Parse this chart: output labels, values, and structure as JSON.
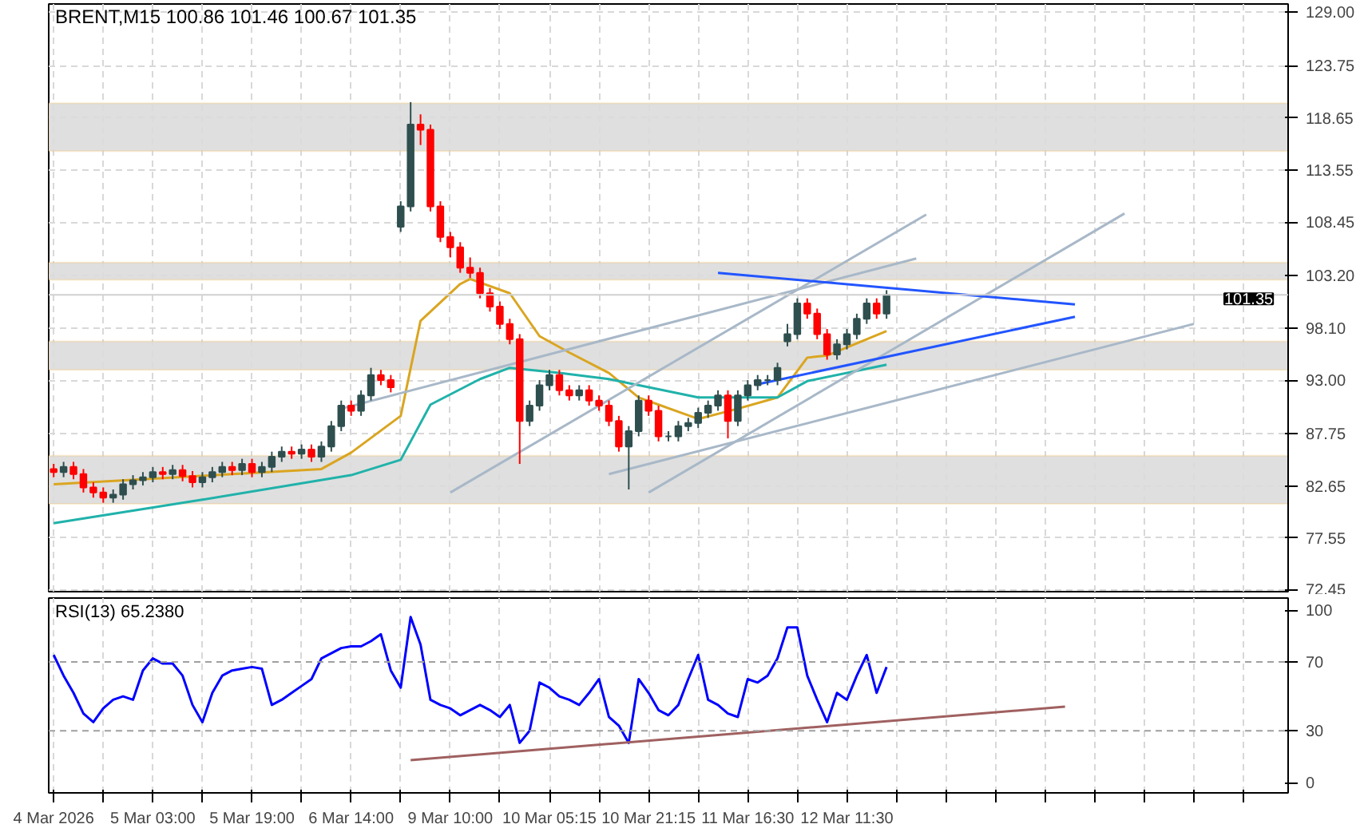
{
  "chart_data": [
    {
      "type": "candlestick",
      "title": "BRENT,M15  100.86 101.46 100.67 101.35",
      "tick_labels": "y",
      "grid": true,
      "ylim": [
        72.3,
        129.8
      ],
      "categories": [
        null,
        null,
        null,
        null,
        null,
        null,
        null,
        null,
        null,
        null,
        null,
        null,
        null,
        null,
        null,
        null,
        null,
        null,
        null,
        null,
        null,
        null,
        null,
        null,
        null,
        null,
        null,
        null,
        null,
        null,
        null,
        null,
        null,
        null,
        null,
        null,
        null,
        null,
        null,
        null,
        null,
        null,
        null,
        null,
        null,
        null,
        null,
        null,
        null,
        null,
        null,
        null,
        null,
        null,
        null,
        null,
        null,
        null,
        null,
        null,
        null,
        null,
        null,
        null,
        null,
        null,
        null,
        null,
        null,
        null,
        null,
        null,
        null,
        null,
        null,
        null,
        null,
        null,
        null,
        null,
        null,
        null,
        null,
        null,
        null,
        null,
        null,
        null,
        null,
        null,
        null,
        null,
        null,
        null,
        null,
        null,
        null,
        null,
        null,
        null,
        null,
        null,
        null,
        null,
        null,
        null,
        null,
        null,
        null,
        null,
        null,
        null,
        null,
        null,
        null,
        null,
        null,
        null,
        null,
        null,
        null,
        null,
        null,
        null,
        null
      ],
      "yticks": [
        {
          "value": 72.45,
          "label": "72.45"
        },
        {
          "value": 77.55,
          "label": "77.55"
        },
        {
          "value": 82.65,
          "label": "82.65"
        },
        {
          "value": 87.75,
          "label": "87.75"
        },
        {
          "value": 93.0,
          "label": "93.00"
        },
        {
          "value": 98.1,
          "label": "98.10"
        },
        {
          "value": 103.2,
          "label": "103.20"
        },
        {
          "value": 108.45,
          "label": "108.45"
        },
        {
          "value": 113.55,
          "label": "113.55"
        },
        {
          "value": 118.65,
          "label": "118.65"
        },
        {
          "value": 123.75,
          "label": "123.75"
        },
        {
          "value": 129.0,
          "label": "129.00"
        }
      ],
      "ohlc": [
        [
          84.3,
          84.8,
          83.5,
          84.0
        ],
        [
          84.0,
          85.0,
          83.5,
          84.5
        ],
        [
          84.5,
          85.0,
          83.3,
          83.8
        ],
        [
          83.8,
          84.3,
          82.0,
          82.5
        ],
        [
          82.5,
          83.0,
          81.5,
          82.0
        ],
        [
          82.0,
          82.5,
          81.0,
          81.5
        ],
        [
          81.5,
          82.3,
          81.0,
          81.8
        ],
        [
          81.8,
          83.3,
          81.3,
          82.8
        ],
        [
          82.8,
          83.7,
          82.3,
          83.2
        ],
        [
          83.2,
          84.0,
          82.7,
          83.5
        ],
        [
          83.5,
          84.5,
          83.0,
          84.0
        ],
        [
          84.0,
          84.5,
          83.3,
          83.8
        ],
        [
          83.8,
          84.7,
          83.3,
          84.2
        ],
        [
          84.2,
          84.7,
          83.1,
          83.6
        ],
        [
          83.6,
          84.1,
          82.5,
          83.0
        ],
        [
          83.0,
          84.0,
          82.5,
          83.5
        ],
        [
          83.5,
          84.5,
          83.0,
          84.0
        ],
        [
          84.0,
          85.0,
          83.5,
          84.5
        ],
        [
          84.5,
          85.0,
          83.7,
          84.2
        ],
        [
          84.2,
          85.3,
          83.7,
          84.8
        ],
        [
          84.8,
          85.3,
          83.5,
          84.0
        ],
        [
          84.0,
          85.0,
          83.5,
          84.5
        ],
        [
          84.5,
          86.0,
          84.0,
          85.5
        ],
        [
          85.5,
          86.5,
          85.0,
          86.0
        ],
        [
          86.0,
          86.5,
          85.3,
          85.8
        ],
        [
          85.8,
          86.7,
          85.3,
          86.2
        ],
        [
          86.2,
          86.7,
          85.0,
          85.5
        ],
        [
          85.5,
          87.0,
          85.0,
          86.5
        ],
        [
          86.5,
          89.0,
          86.0,
          88.5
        ],
        [
          88.5,
          91.0,
          88.0,
          90.5
        ],
        [
          90.5,
          91.0,
          89.5,
          90.0
        ],
        [
          90.0,
          92.0,
          89.5,
          91.5
        ],
        [
          91.5,
          94.2,
          91.0,
          93.5
        ],
        [
          93.5,
          94.0,
          92.5,
          93.0
        ],
        [
          93.0,
          93.5,
          91.8,
          92.3
        ],
        [
          108.0,
          110.5,
          107.5,
          110.0
        ],
        [
          110.0,
          120.2,
          109.5,
          118.0
        ],
        [
          118.0,
          119.0,
          116.0,
          117.5
        ],
        [
          117.5,
          118.0,
          109.5,
          110.0
        ],
        [
          110.0,
          110.5,
          106.5,
          107.0
        ],
        [
          107.0,
          107.5,
          105.0,
          106.0
        ],
        [
          106.0,
          106.5,
          103.5,
          104.0
        ],
        [
          104.0,
          105.0,
          103.0,
          103.5
        ],
        [
          103.5,
          104.0,
          101.0,
          101.5
        ],
        [
          101.5,
          102.0,
          99.7,
          100.2
        ],
        [
          100.2,
          100.7,
          98.0,
          98.5
        ],
        [
          98.5,
          99.0,
          96.5,
          97.0
        ],
        [
          97.0,
          97.5,
          84.8,
          89.0
        ],
        [
          89.0,
          91.0,
          88.5,
          90.5
        ],
        [
          90.5,
          93.0,
          90.0,
          92.5
        ],
        [
          92.5,
          94.0,
          92.0,
          93.5
        ],
        [
          93.5,
          94.0,
          91.5,
          92.0
        ],
        [
          92.0,
          92.5,
          91.0,
          91.5
        ],
        [
          91.5,
          92.5,
          91.0,
          92.0
        ],
        [
          92.0,
          92.5,
          90.5,
          91.0
        ],
        [
          91.0,
          91.5,
          90.0,
          90.5
        ],
        [
          90.5,
          91.0,
          88.5,
          89.0
        ],
        [
          89.0,
          89.5,
          86.0,
          86.5
        ],
        [
          86.5,
          88.5,
          82.3,
          88.0
        ],
        [
          88.0,
          91.5,
          87.5,
          91.0
        ],
        [
          91.0,
          91.5,
          89.5,
          90.0
        ],
        [
          90.0,
          90.5,
          87.0,
          87.5
        ],
        [
          87.5,
          88.0,
          87.0,
          87.5
        ],
        [
          87.5,
          89.0,
          87.0,
          88.5
        ],
        [
          88.5,
          89.3,
          88.0,
          88.8
        ],
        [
          88.8,
          90.3,
          88.3,
          89.8
        ],
        [
          89.8,
          91.0,
          89.3,
          90.5
        ],
        [
          90.5,
          92.0,
          90.0,
          91.5
        ],
        [
          91.5,
          92.0,
          87.3,
          89.0
        ],
        [
          89.0,
          92.0,
          88.5,
          91.5
        ],
        [
          91.5,
          93.0,
          91.0,
          92.5
        ],
        [
          92.5,
          93.5,
          92.0,
          93.0
        ],
        [
          93.0,
          93.5,
          92.5,
          93.0
        ],
        [
          93.0,
          94.7,
          92.5,
          94.2
        ],
        [
          96.8,
          98.5,
          96.3,
          97.5
        ],
        [
          97.5,
          101.0,
          97.0,
          100.5
        ],
        [
          100.5,
          101.0,
          99.0,
          99.5
        ],
        [
          99.5,
          100.0,
          97.0,
          97.5
        ],
        [
          97.5,
          98.0,
          95.0,
          95.5
        ],
        [
          95.5,
          97.0,
          95.0,
          96.5
        ],
        [
          96.5,
          98.0,
          96.0,
          97.5
        ],
        [
          97.5,
          99.5,
          97.0,
          99.0
        ],
        [
          99.0,
          101.0,
          98.5,
          100.5
        ],
        [
          100.5,
          101.0,
          99.0,
          99.5
        ],
        [
          99.5,
          101.8,
          99.0,
          101.35
        ],
        null,
        null,
        null,
        null,
        null,
        null,
        null,
        null,
        null,
        null,
        null,
        null,
        null,
        null,
        null,
        null,
        null,
        null,
        null,
        null,
        null,
        null,
        null,
        null,
        null,
        null,
        null,
        null,
        null,
        null,
        null,
        null,
        null,
        null,
        null,
        null,
        null,
        null,
        null,
        null
      ],
      "colors": [
        "#ff0000",
        "#2f4f4f",
        "#ff0000",
        "#ff0000",
        "#ff0000",
        "#ff0000",
        "#2f4f4f",
        "#2f4f4f",
        "#2f4f4f",
        "#2f4f4f",
        "#2f4f4f",
        "#ff0000",
        "#2f4f4f",
        "#ff0000",
        "#ff0000",
        "#2f4f4f",
        "#2f4f4f",
        "#2f4f4f",
        "#ff0000",
        "#2f4f4f",
        "#ff0000",
        "#2f4f4f",
        "#2f4f4f",
        "#2f4f4f",
        "#ff0000",
        "#2f4f4f",
        "#ff0000",
        "#2f4f4f",
        "#2f4f4f",
        "#2f4f4f",
        "#ff0000",
        "#2f4f4f",
        "#2f4f4f",
        "#ff0000",
        "#ff0000",
        "#2f4f4f",
        "#2f4f4f",
        "#ff0000",
        "#ff0000",
        "#ff0000",
        "#ff0000",
        "#ff0000",
        "#ff0000",
        "#ff0000",
        "#ff0000",
        "#ff0000",
        "#ff0000",
        "#ff0000",
        "#2f4f4f",
        "#2f4f4f",
        "#2f4f4f",
        "#ff0000",
        "#ff0000",
        "#2f4f4f",
        "#ff0000",
        "#ff0000",
        "#ff0000",
        "#ff0000",
        "#2f4f4f",
        "#2f4f4f",
        "#ff0000",
        "#ff0000",
        "#2f4f4f",
        "#2f4f4f",
        "#2f4f4f",
        "#2f4f4f",
        "#2f4f4f",
        "#2f4f4f",
        "#ff0000",
        "#2f4f4f",
        "#2f4f4f",
        "#2f4f4f",
        "#2f4f4f",
        "#2f4f4f",
        "#2f4f4f",
        "#2f4f4f",
        "#ff0000",
        "#ff0000",
        "#ff0000",
        "#2f4f4f",
        "#2f4f4f",
        "#2f4f4f",
        "#2f4f4f",
        "#ff0000",
        "#2f4f4f",
        null,
        null,
        null,
        null,
        null,
        null,
        null,
        null,
        null,
        null,
        null,
        null,
        null,
        null,
        null,
        null,
        null,
        null,
        null,
        null,
        null,
        null,
        null,
        null,
        null,
        null,
        null,
        null,
        null,
        null,
        null,
        null,
        null,
        null,
        null,
        null,
        null,
        null,
        null,
        null
      ],
      "series": [
        {
          "type": "line",
          "color": "#daa520",
          "values": [
            82.8,
            null,
            null,
            null,
            null,
            null,
            null,
            null,
            null,
            83.3,
            null,
            null,
            null,
            null,
            null,
            null,
            null,
            null,
            83.8,
            null,
            null,
            null,
            null,
            null,
            null,
            null,
            null,
            84.3,
            null,
            null,
            85.9,
            null,
            null,
            null,
            null,
            89.5,
            null,
            98.8,
            null,
            null,
            null,
            102.4,
            102.9,
            null,
            null,
            null,
            101.5,
            null,
            null,
            97.3,
            null,
            null,
            95.7,
            null,
            null,
            null,
            93.7,
            null,
            null,
            91.3,
            null,
            90.6,
            null,
            null,
            null,
            89.2,
            null,
            null,
            null,
            90.2,
            null,
            null,
            null,
            91.3,
            null,
            null,
            95.2,
            null,
            95.4,
            null,
            null,
            null,
            null,
            null,
            97.8,
            null,
            null,
            null,
            null,
            null,
            null,
            null,
            null,
            null,
            null,
            null,
            null,
            null,
            null,
            null,
            null,
            null,
            null,
            null,
            null,
            null,
            null,
            null,
            null,
            null,
            null,
            null,
            null,
            null,
            null,
            null,
            null,
            null,
            null,
            null,
            null,
            null,
            null,
            null,
            null
          ]
        },
        {
          "type": "line",
          "color": "#20b2aa",
          "values": [
            79.0,
            null,
            null,
            null,
            null,
            null,
            null,
            null,
            null,
            null,
            null,
            null,
            null,
            null,
            null,
            81.3,
            null,
            null,
            null,
            null,
            null,
            null,
            null,
            null,
            null,
            null,
            null,
            null,
            null,
            null,
            83.7,
            null,
            null,
            null,
            null,
            85.2,
            null,
            null,
            90.6,
            null,
            null,
            null,
            null,
            93.1,
            null,
            null,
            94.2,
            null,
            null,
            null,
            null,
            93.7,
            null,
            null,
            null,
            null,
            93.1,
            null,
            null,
            null,
            null,
            92.1,
            null,
            null,
            null,
            91.3,
            null,
            null,
            null,
            null,
            null,
            null,
            null,
            91.3,
            null,
            null,
            92.9,
            null,
            null,
            null,
            null,
            null,
            null,
            null,
            94.5,
            null,
            null,
            null,
            null,
            null,
            null,
            null,
            null,
            null,
            null,
            null,
            null,
            null,
            null,
            null,
            null,
            null,
            null,
            null,
            null,
            null,
            null,
            null,
            null,
            null,
            null,
            null,
            null,
            null,
            null,
            null,
            null,
            null,
            null,
            null,
            null,
            null,
            null,
            null,
            null
          ]
        },
        {
          "type": "line",
          "color": "#a8b8c8",
          "values": [
            null,
            null,
            null,
            null,
            null,
            null,
            null,
            null,
            null,
            null,
            null,
            null,
            null,
            null,
            null,
            null,
            null,
            null,
            null,
            null,
            null,
            null,
            null,
            null,
            null,
            null,
            null,
            null,
            null,
            90.2,
            null,
            null,
            null,
            null,
            null,
            null,
            null,
            null,
            null,
            null,
            null,
            null,
            null,
            null,
            null,
            null,
            null,
            null,
            null,
            null,
            null,
            null,
            null,
            null,
            null,
            null,
            null,
            null,
            null,
            null,
            null,
            null,
            null,
            null,
            null,
            null,
            null,
            null,
            null,
            null,
            null,
            null,
            null,
            null,
            null,
            null,
            null,
            null,
            null,
            null,
            null,
            null,
            null,
            null,
            null,
            null,
            null,
            104.9,
            null,
            null,
            null,
            null,
            null,
            null,
            null,
            null,
            null,
            null,
            null,
            null,
            null,
            null,
            null,
            null,
            null,
            null,
            null,
            null,
            null,
            null,
            null,
            null,
            null,
            null,
            null,
            null,
            null,
            null,
            null,
            null,
            null,
            null,
            null,
            null,
            null
          ]
        },
        {
          "type": "line",
          "color": "#a8b8c8",
          "values": [
            null,
            null,
            null,
            null,
            null,
            null,
            null,
            null,
            null,
            null,
            null,
            null,
            null,
            null,
            null,
            null,
            null,
            null,
            null,
            null,
            null,
            null,
            null,
            null,
            null,
            null,
            null,
            null,
            null,
            null,
            null,
            null,
            null,
            null,
            null,
            null,
            null,
            null,
            null,
            null,
            82.0,
            null,
            null,
            null,
            null,
            null,
            null,
            null,
            null,
            null,
            null,
            null,
            null,
            null,
            null,
            null,
            null,
            null,
            null,
            null,
            null,
            null,
            null,
            null,
            null,
            null,
            null,
            null,
            null,
            null,
            null,
            null,
            null,
            null,
            null,
            null,
            null,
            null,
            null,
            null,
            null,
            null,
            null,
            null,
            null,
            null,
            null,
            null,
            109.2,
            null,
            null,
            null,
            null,
            null,
            null,
            null,
            null,
            null,
            null,
            null,
            null,
            null,
            null,
            null,
            null,
            null,
            null,
            null,
            null,
            null,
            null,
            null,
            null,
            null,
            null,
            null,
            null,
            null,
            null,
            null,
            null,
            null,
            null,
            null,
            null
          ]
        },
        {
          "type": "line",
          "color": "#a8b8c8",
          "values": [
            null,
            null,
            null,
            null,
            null,
            null,
            null,
            null,
            null,
            null,
            null,
            null,
            null,
            null,
            null,
            null,
            null,
            null,
            null,
            null,
            null,
            null,
            null,
            null,
            null,
            null,
            null,
            null,
            null,
            null,
            null,
            null,
            null,
            null,
            null,
            null,
            null,
            null,
            null,
            null,
            null,
            null,
            null,
            null,
            null,
            null,
            null,
            null,
            null,
            null,
            null,
            null,
            null,
            null,
            null,
            null,
            null,
            null,
            null,
            null,
            82.0,
            null,
            null,
            null,
            null,
            null,
            null,
            null,
            null,
            null,
            null,
            null,
            null,
            null,
            null,
            null,
            null,
            null,
            null,
            null,
            null,
            null,
            null,
            null,
            null,
            null,
            null,
            null,
            null,
            null,
            null,
            null,
            null,
            null,
            null,
            null,
            null,
            null,
            null,
            null,
            null,
            null,
            null,
            null,
            null,
            null,
            null,
            null,
            109.3,
            null,
            null,
            null,
            null,
            null,
            null,
            null,
            null,
            null,
            null,
            null,
            null,
            null,
            null,
            null,
            null
          ]
        },
        {
          "type": "line",
          "color": "#a8b8c8",
          "values": [
            null,
            null,
            null,
            null,
            null,
            null,
            null,
            null,
            null,
            null,
            null,
            null,
            null,
            null,
            null,
            null,
            null,
            null,
            null,
            null,
            null,
            null,
            null,
            null,
            null,
            null,
            null,
            null,
            null,
            null,
            null,
            null,
            null,
            null,
            null,
            null,
            null,
            null,
            null,
            null,
            null,
            null,
            null,
            null,
            null,
            null,
            null,
            null,
            null,
            null,
            null,
            null,
            null,
            null,
            null,
            null,
            83.8,
            null,
            null,
            null,
            null,
            null,
            null,
            null,
            null,
            null,
            null,
            null,
            null,
            null,
            null,
            null,
            null,
            null,
            null,
            null,
            null,
            null,
            null,
            null,
            null,
            null,
            null,
            null,
            null,
            null,
            null,
            null,
            null,
            null,
            null,
            null,
            null,
            null,
            null,
            null,
            null,
            null,
            null,
            null,
            null,
            null,
            null,
            null,
            null,
            null,
            null,
            null,
            null,
            null,
            null,
            null,
            null,
            null,
            null,
            98.5,
            null,
            null,
            null,
            null,
            null,
            null,
            null,
            null,
            null
          ]
        },
        {
          "type": "line",
          "color": "#2255ff",
          "values": [
            null,
            null,
            null,
            null,
            null,
            null,
            null,
            null,
            null,
            null,
            null,
            null,
            null,
            null,
            null,
            null,
            null,
            null,
            null,
            null,
            null,
            null,
            null,
            null,
            null,
            null,
            null,
            null,
            null,
            null,
            null,
            null,
            null,
            null,
            null,
            null,
            null,
            null,
            null,
            null,
            null,
            null,
            null,
            null,
            null,
            null,
            null,
            null,
            null,
            null,
            null,
            null,
            null,
            null,
            null,
            null,
            null,
            null,
            null,
            null,
            null,
            null,
            null,
            null,
            null,
            null,
            null,
            103.5,
            null,
            null,
            null,
            null,
            null,
            null,
            null,
            null,
            null,
            null,
            null,
            null,
            null,
            null,
            null,
            null,
            null,
            null,
            null,
            null,
            null,
            null,
            null,
            null,
            null,
            null,
            null,
            null,
            null,
            null,
            null,
            null,
            null,
            null,
            null,
            100.4,
            null,
            null,
            null,
            null,
            null,
            null,
            null,
            null,
            null,
            null,
            null,
            null,
            null,
            null,
            null,
            null,
            null,
            null,
            null,
            null,
            null
          ]
        },
        {
          "type": "line",
          "color": "#2255ff",
          "values": [
            null,
            null,
            null,
            null,
            null,
            null,
            null,
            null,
            null,
            null,
            null,
            null,
            null,
            null,
            null,
            null,
            null,
            null,
            null,
            null,
            null,
            null,
            null,
            null,
            null,
            null,
            null,
            null,
            null,
            null,
            null,
            null,
            null,
            null,
            null,
            null,
            null,
            null,
            null,
            null,
            null,
            null,
            null,
            null,
            null,
            null,
            null,
            null,
            null,
            null,
            null,
            null,
            null,
            null,
            null,
            null,
            null,
            null,
            null,
            null,
            null,
            null,
            null,
            null,
            null,
            null,
            null,
            null,
            null,
            null,
            null,
            92.6,
            null,
            null,
            null,
            null,
            null,
            null,
            null,
            null,
            null,
            null,
            null,
            null,
            null,
            null,
            null,
            null,
            null,
            null,
            null,
            null,
            null,
            null,
            null,
            null,
            null,
            null,
            null,
            null,
            null,
            null,
            null,
            99.2,
            null,
            null,
            null,
            null,
            null,
            null,
            null,
            null,
            null,
            null,
            null,
            null,
            null,
            null,
            null,
            null,
            null,
            null,
            null,
            null,
            null
          ]
        }
      ],
      "bands": [
        {
          "axis": "y",
          "from": 115.4,
          "to": 120.1,
          "color": "#dcdcdc"
        },
        {
          "axis": "y",
          "from": 102.8,
          "to": 104.5,
          "color": "#dcdcdc"
        },
        {
          "axis": "y",
          "from": 94.0,
          "to": 96.8,
          "color": "#dcdcdc"
        },
        {
          "axis": "y",
          "from": 80.9,
          "to": 85.6,
          "color": "#dcdcdc"
        }
      ],
      "ref_lines": [
        {
          "axis": "y",
          "value": 101.35,
          "label": "101.35",
          "color": "#d0d0d0",
          "line_style": "solid"
        }
      ]
    },
    {
      "type": "line",
      "title": "RSI(13) 65.2380",
      "grid": "x",
      "ylim": [
        -6,
        107
      ],
      "categories": [
        "4 Mar 2026",
        null,
        null,
        null,
        null,
        null,
        null,
        null,
        null,
        null,
        "5 Mar 03:00",
        null,
        null,
        null,
        null,
        null,
        null,
        null,
        null,
        null,
        "5 Mar 19:00",
        null,
        null,
        null,
        null,
        null,
        null,
        null,
        null,
        null,
        "6 Mar 14:00",
        null,
        null,
        null,
        null,
        null,
        null,
        null,
        null,
        null,
        "9 Mar 10:00",
        null,
        null,
        null,
        null,
        null,
        null,
        null,
        null,
        null,
        "10 Mar 05:15",
        null,
        null,
        null,
        null,
        null,
        null,
        null,
        null,
        null,
        "10 Mar 21:15",
        null,
        null,
        null,
        null,
        null,
        null,
        null,
        null,
        null,
        "11 Mar 16:30",
        null,
        null,
        null,
        null,
        null,
        null,
        null,
        null,
        null,
        "12 Mar 11:30",
        null,
        null,
        null,
        null,
        null,
        null,
        null,
        null,
        null,
        null,
        null,
        null,
        null,
        null,
        null,
        null,
        null,
        null,
        null,
        null,
        null,
        null,
        null,
        null,
        null,
        null,
        null,
        null,
        null,
        null,
        null,
        null,
        null,
        null,
        null,
        null,
        null,
        null,
        null,
        null,
        null,
        null,
        null,
        null
      ],
      "yticks": [
        0,
        30,
        70,
        100
      ],
      "series": [
        {
          "type": "line",
          "color": "#0000ff",
          "values": [
            74,
            62,
            52,
            40,
            35,
            43,
            48,
            50,
            48,
            65,
            72,
            69,
            69,
            62,
            45,
            35,
            52,
            62,
            65,
            66,
            67,
            66,
            45,
            48,
            52,
            56,
            60,
            72,
            75,
            78,
            79,
            79,
            82,
            86,
            65,
            55,
            96,
            80,
            48,
            45,
            43,
            39,
            42,
            45,
            42,
            38,
            45,
            23,
            30,
            58,
            55,
            50,
            48,
            45,
            52,
            60,
            38,
            33,
            23,
            60,
            52,
            42,
            39,
            45,
            60,
            74,
            48,
            45,
            40,
            38,
            60,
            58,
            62,
            72,
            90,
            90,
            62,
            48,
            35,
            52,
            48,
            62,
            74,
            52,
            67,
            null,
            null,
            null,
            null,
            null,
            null,
            null,
            null,
            null,
            null,
            null,
            null,
            null,
            null,
            null,
            null,
            null,
            null,
            null,
            null,
            null,
            null,
            null,
            null,
            null,
            null,
            null,
            null,
            null,
            null,
            null,
            null,
            null,
            null,
            null,
            null,
            null,
            null,
            null,
            null
          ]
        },
        {
          "type": "line",
          "color": "#a06060",
          "values": [
            null,
            null,
            null,
            null,
            null,
            null,
            null,
            null,
            null,
            null,
            null,
            null,
            null,
            null,
            null,
            null,
            null,
            null,
            null,
            null,
            null,
            null,
            null,
            null,
            null,
            null,
            null,
            null,
            null,
            null,
            null,
            null,
            null,
            null,
            null,
            null,
            13,
            null,
            null,
            null,
            null,
            null,
            null,
            null,
            null,
            null,
            null,
            null,
            null,
            null,
            null,
            null,
            null,
            null,
            null,
            null,
            null,
            null,
            null,
            null,
            null,
            null,
            null,
            null,
            null,
            null,
            null,
            null,
            null,
            null,
            null,
            null,
            null,
            null,
            null,
            null,
            null,
            null,
            null,
            null,
            null,
            null,
            null,
            null,
            null,
            null,
            null,
            null,
            null,
            null,
            null,
            null,
            null,
            null,
            null,
            null,
            null,
            null,
            null,
            null,
            null,
            null,
            44,
            null,
            null,
            null,
            null,
            null,
            null,
            null,
            null,
            null,
            null,
            null,
            null,
            null,
            null,
            null,
            null,
            null,
            null,
            null,
            null,
            null,
            null
          ]
        }
      ],
      "ref_lines": [
        {
          "axis": "y",
          "value": 30,
          "color": "#a0a0a0",
          "line_style": "dashed"
        },
        {
          "axis": "y",
          "value": 70,
          "color": "#a0a0a0",
          "line_style": "dashed"
        }
      ]
    }
  ]
}
